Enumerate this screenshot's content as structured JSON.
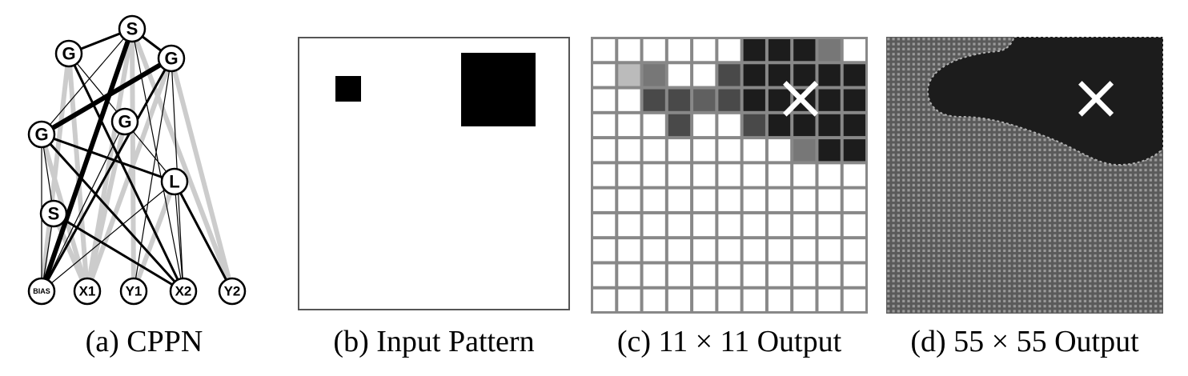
{
  "colors": {
    "background": "#ffffff",
    "black": "#000000",
    "dark_fill": "#1c1c1c",
    "grid_line": "#7a7a7a",
    "light_edge": "#cccccc",
    "mid_gray": "#555555",
    "light_gray": "#b8b8b8"
  },
  "panel_a": {
    "caption": "(a) CPPN",
    "nodes": [
      {
        "id": "s_top",
        "label": "S"
      },
      {
        "id": "g_left",
        "label": "G"
      },
      {
        "id": "g_right",
        "label": "G"
      },
      {
        "id": "g_mid_left",
        "label": "G"
      },
      {
        "id": "g_mid",
        "label": "G"
      },
      {
        "id": "l",
        "label": "L"
      },
      {
        "id": "s_low",
        "label": "S"
      },
      {
        "id": "bias",
        "label": "BIAS"
      },
      {
        "id": "x1",
        "label": "X1"
      },
      {
        "id": "y1",
        "label": "Y1"
      },
      {
        "id": "x2",
        "label": "X2"
      },
      {
        "id": "y2",
        "label": "Y2"
      }
    ],
    "edges": [
      {
        "from": "s_top",
        "to": "g_left",
        "style": "thick"
      },
      {
        "from": "s_top",
        "to": "g_right",
        "style": "thick"
      },
      {
        "from": "s_top",
        "to": "g_mid_left",
        "style": "thin"
      },
      {
        "from": "s_top",
        "to": "bias",
        "style": "heavy"
      },
      {
        "from": "s_top",
        "to": "x1",
        "style": "gray"
      },
      {
        "from": "s_top",
        "to": "y1",
        "style": "gray"
      },
      {
        "from": "s_top",
        "to": "x2",
        "style": "thin"
      },
      {
        "from": "s_top",
        "to": "y2",
        "style": "gray"
      },
      {
        "from": "g_left",
        "to": "g_mid",
        "style": "thin"
      },
      {
        "from": "g_left",
        "to": "x1",
        "style": "gray"
      },
      {
        "from": "g_left",
        "to": "bias",
        "style": "gray"
      },
      {
        "from": "g_left",
        "to": "x2",
        "style": "thick"
      },
      {
        "from": "g_right",
        "to": "g_mid_left",
        "style": "heavy"
      },
      {
        "from": "g_right",
        "to": "bias",
        "style": "thick"
      },
      {
        "from": "g_right",
        "to": "y1",
        "style": "thin"
      },
      {
        "from": "g_right",
        "to": "x2",
        "style": "thin"
      },
      {
        "from": "g_right",
        "to": "y2",
        "style": "gray"
      },
      {
        "from": "g_right",
        "to": "x1",
        "style": "gray"
      },
      {
        "from": "g_mid_left",
        "to": "l",
        "style": "thick"
      },
      {
        "from": "g_mid_left",
        "to": "s_low",
        "style": "thin"
      },
      {
        "from": "g_mid_left",
        "to": "x1",
        "style": "gray"
      },
      {
        "from": "g_mid_left",
        "to": "x2",
        "style": "thick"
      },
      {
        "from": "g_mid_left",
        "to": "bias",
        "style": "thin"
      },
      {
        "from": "g_mid",
        "to": "l",
        "style": "thin"
      },
      {
        "from": "g_mid",
        "to": "x1",
        "style": "gray"
      },
      {
        "from": "g_mid",
        "to": "bias",
        "style": "thin"
      },
      {
        "from": "l",
        "to": "bias",
        "style": "thin"
      },
      {
        "from": "l",
        "to": "y2",
        "style": "thick"
      },
      {
        "from": "l",
        "to": "x2",
        "style": "thin"
      },
      {
        "from": "l",
        "to": "y1",
        "style": "gray"
      },
      {
        "from": "s_low",
        "to": "x2",
        "style": "thick"
      },
      {
        "from": "s_low",
        "to": "x1",
        "style": "gray"
      },
      {
        "from": "s_low",
        "to": "bias",
        "style": "thin"
      }
    ]
  },
  "panel_b": {
    "caption": "(b) Input Pattern"
  },
  "panel_c": {
    "caption": "(c) 11 × 11 Output",
    "marker": "×",
    "grid": [
      [
        0,
        0,
        0,
        0,
        0,
        0,
        1,
        1,
        1,
        0.6,
        0
      ],
      [
        0,
        0.3,
        0.6,
        0,
        0,
        0.8,
        1,
        1,
        1,
        1,
        1
      ],
      [
        0,
        0,
        0.8,
        0.8,
        0.7,
        0.8,
        1,
        1,
        1,
        1,
        1
      ],
      [
        0,
        0,
        0,
        0.8,
        0,
        0,
        0.8,
        1,
        1,
        1,
        1
      ],
      [
        0,
        0,
        0,
        0,
        0,
        0,
        0,
        0,
        0.6,
        1,
        1
      ],
      [
        0,
        0,
        0,
        0,
        0,
        0,
        0,
        0,
        0,
        0,
        0
      ],
      [
        0,
        0,
        0,
        0,
        0,
        0,
        0,
        0,
        0,
        0,
        0
      ],
      [
        0,
        0,
        0,
        0,
        0,
        0,
        0,
        0,
        0,
        0,
        0
      ],
      [
        0,
        0,
        0,
        0,
        0,
        0,
        0,
        0,
        0,
        0,
        0
      ],
      [
        0,
        0,
        0,
        0,
        0,
        0,
        0,
        0,
        0,
        0,
        0
      ],
      [
        0,
        0,
        0,
        0,
        0,
        0,
        0,
        0,
        0,
        0,
        0
      ]
    ]
  },
  "panel_d": {
    "caption": "(d) 55 × 55 Output",
    "marker": "×"
  }
}
